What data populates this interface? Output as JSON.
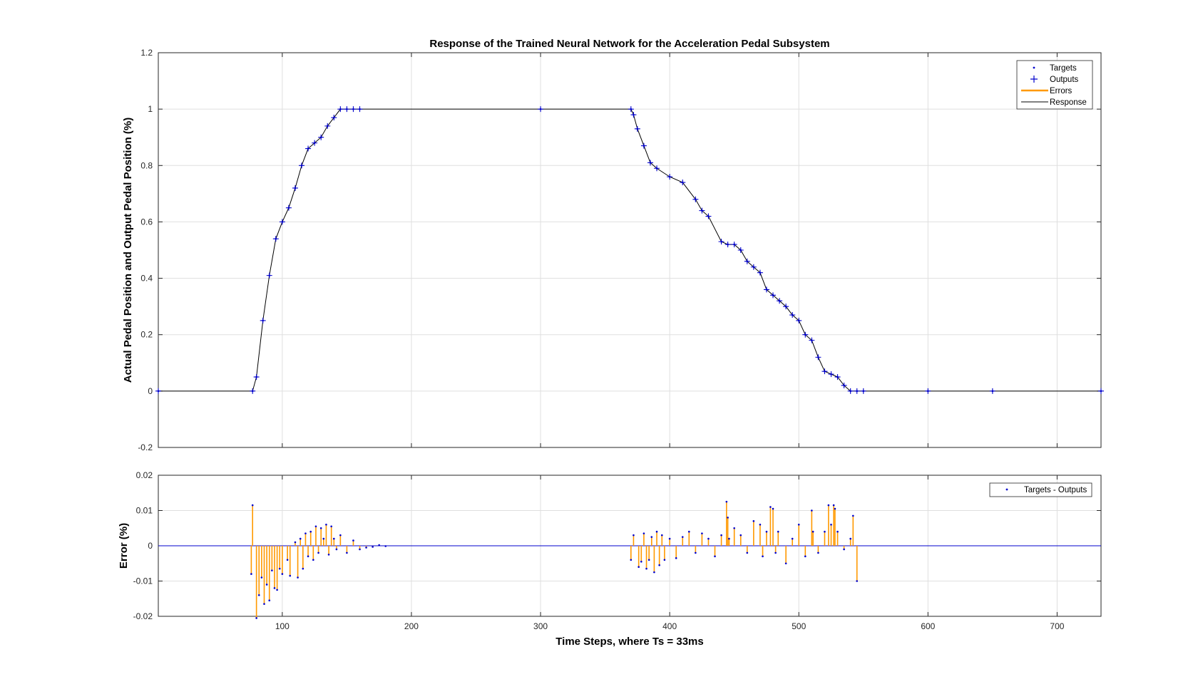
{
  "chart_data": [
    {
      "type": "line",
      "title": "Response of the Trained Neural Network for the Acceleration Pedal Subsystem",
      "xlabel": "",
      "ylabel": "Actual Pedal Position and Output Pedal Position (%)",
      "xlim": [
        4,
        734
      ],
      "ylim": [
        -0.2,
        1.2
      ],
      "xticks": [
        100,
        200,
        300,
        400,
        500,
        600,
        700
      ],
      "yticks": [
        -0.2,
        0,
        0.2,
        0.4,
        0.6,
        0.8,
        1,
        1.2
      ],
      "grid": true,
      "legend_position": "top-right",
      "legend": [
        "Targets",
        "Outputs",
        "Errors",
        "Response"
      ],
      "series": [
        {
          "name": "Targets",
          "marker": "dot",
          "color": "#0000cc",
          "x": [
            4,
            77,
            80,
            85,
            90,
            95,
            100,
            105,
            110,
            115,
            120,
            125,
            130,
            135,
            140,
            145,
            150,
            155,
            160,
            300,
            370,
            372,
            375,
            380,
            385,
            390,
            400,
            410,
            420,
            425,
            430,
            440,
            445,
            450,
            455,
            460,
            465,
            470,
            475,
            480,
            485,
            490,
            495,
            500,
            505,
            510,
            515,
            520,
            525,
            530,
            535,
            540,
            545,
            550,
            600,
            650,
            734
          ],
          "y": [
            0,
            0,
            0.05,
            0.25,
            0.41,
            0.54,
            0.6,
            0.65,
            0.72,
            0.8,
            0.86,
            0.88,
            0.9,
            0.94,
            0.97,
            1,
            1,
            1,
            1,
            1,
            1,
            0.98,
            0.93,
            0.87,
            0.81,
            0.79,
            0.76,
            0.74,
            0.68,
            0.64,
            0.62,
            0.53,
            0.52,
            0.52,
            0.5,
            0.46,
            0.44,
            0.42,
            0.36,
            0.34,
            0.32,
            0.3,
            0.27,
            0.25,
            0.2,
            0.18,
            0.12,
            0.07,
            0.06,
            0.05,
            0.02,
            0,
            0,
            0,
            0,
            0,
            0
          ]
        },
        {
          "name": "Outputs",
          "marker": "plus",
          "color": "#0000cc",
          "x": [
            4,
            77,
            80,
            85,
            90,
            95,
            100,
            105,
            110,
            115,
            120,
            125,
            130,
            135,
            140,
            145,
            150,
            155,
            160,
            300,
            370,
            372,
            375,
            380,
            385,
            390,
            400,
            410,
            420,
            425,
            430,
            440,
            445,
            450,
            455,
            460,
            465,
            470,
            475,
            480,
            485,
            490,
            495,
            500,
            505,
            510,
            515,
            520,
            525,
            530,
            535,
            540,
            545,
            550,
            600,
            650,
            734
          ],
          "y": [
            0,
            0,
            0.05,
            0.25,
            0.41,
            0.54,
            0.6,
            0.65,
            0.72,
            0.8,
            0.86,
            0.88,
            0.9,
            0.94,
            0.97,
            1,
            1,
            1,
            1,
            1,
            1,
            0.98,
            0.93,
            0.87,
            0.81,
            0.79,
            0.76,
            0.74,
            0.68,
            0.64,
            0.62,
            0.53,
            0.52,
            0.52,
            0.5,
            0.46,
            0.44,
            0.42,
            0.36,
            0.34,
            0.32,
            0.3,
            0.27,
            0.25,
            0.2,
            0.18,
            0.12,
            0.07,
            0.06,
            0.05,
            0.02,
            0,
            0,
            0,
            0,
            0,
            0
          ]
        }
      ]
    },
    {
      "type": "bar",
      "title": "",
      "xlabel": "Time Steps, where Ts = 33ms",
      "ylabel": "Error (%)",
      "xlim": [
        4,
        734
      ],
      "ylim": [
        -0.02,
        0.02
      ],
      "xticks": [
        100,
        200,
        300,
        400,
        500,
        600,
        700
      ],
      "yticks": [
        -0.02,
        -0.01,
        0,
        0.01,
        0.02
      ],
      "grid": true,
      "legend_position": "top-right",
      "legend": [
        "Targets - Outputs"
      ],
      "series": [
        {
          "name": "Targets - Outputs",
          "color": "#ff9900",
          "marker_color": "#0000cc",
          "x": [
            76,
            77,
            80,
            82,
            84,
            86,
            88,
            90,
            92,
            94,
            96,
            98,
            100,
            104,
            106,
            110,
            112,
            114,
            116,
            118,
            120,
            122,
            124,
            126,
            128,
            130,
            132,
            134,
            136,
            138,
            140,
            142,
            145,
            150,
            155,
            160,
            165,
            170,
            175,
            180,
            370,
            372,
            376,
            378,
            380,
            382,
            384,
            386,
            388,
            390,
            392,
            394,
            396,
            400,
            405,
            410,
            415,
            420,
            425,
            430,
            435,
            440,
            444,
            445,
            446,
            450,
            455,
            460,
            465,
            470,
            472,
            475,
            478,
            480,
            482,
            484,
            490,
            495,
            500,
            505,
            510,
            511,
            515,
            520,
            523,
            525,
            527,
            528,
            530,
            535,
            540,
            542,
            545
          ],
          "values": [
            -0.008,
            0.0115,
            -0.0205,
            -0.014,
            -0.009,
            -0.0165,
            -0.011,
            -0.0155,
            -0.007,
            -0.012,
            -0.0125,
            -0.0065,
            -0.008,
            -0.004,
            -0.0085,
            0.001,
            -0.009,
            0.002,
            -0.0065,
            0.0035,
            -0.003,
            0.004,
            -0.004,
            0.0055,
            -0.002,
            0.005,
            0.002,
            0.006,
            -0.0025,
            0.0055,
            0.002,
            -0.001,
            0.003,
            -0.002,
            0.0015,
            -0.001,
            -0.0005,
            -0.0003,
            0.0002,
            -0.0001,
            -0.004,
            0.003,
            -0.006,
            -0.0045,
            0.0035,
            -0.0065,
            -0.004,
            0.0025,
            -0.0075,
            0.004,
            -0.0055,
            0.003,
            -0.004,
            0.002,
            -0.0035,
            0.0025,
            0.004,
            -0.002,
            0.0035,
            0.002,
            -0.003,
            0.003,
            0.0125,
            0.008,
            0.002,
            0.005,
            0.003,
            -0.002,
            0.007,
            0.006,
            -0.003,
            0.004,
            0.011,
            0.0105,
            -0.002,
            0.004,
            -0.005,
            0.002,
            0.006,
            -0.003,
            0.01,
            0.004,
            -0.002,
            0.004,
            0.0115,
            0.006,
            0.0115,
            0.0105,
            0.004,
            -0.001,
            0.002,
            0.0085,
            -0.01
          ]
        }
      ]
    }
  ]
}
